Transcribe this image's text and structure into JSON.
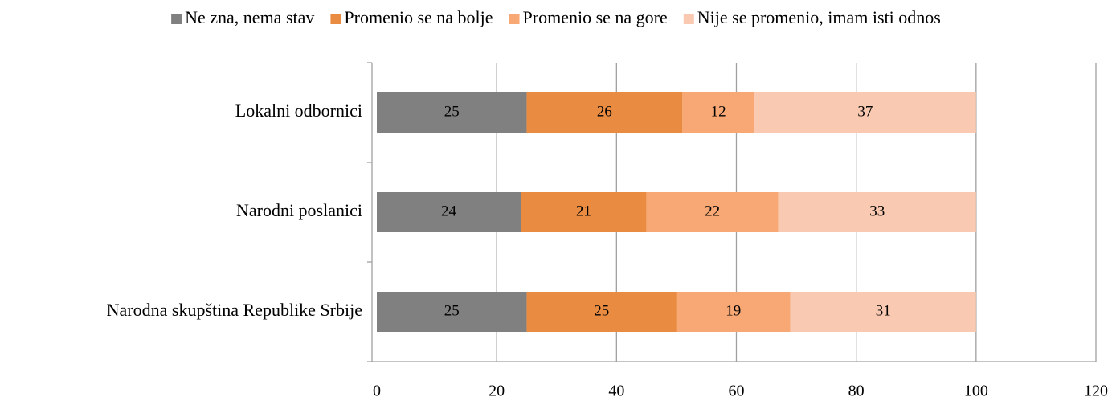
{
  "chart_data": {
    "type": "stacked_barh",
    "categories": [
      "Lokalni odbornici",
      "Narodni poslanici",
      "Narodna skupština Republike Srbije"
    ],
    "series": [
      {
        "name": "Ne zna, nema stav",
        "color": "#808080",
        "values": [
          25,
          24,
          25
        ]
      },
      {
        "name": "Promenio se na bolje",
        "color": "#e98c42",
        "values": [
          26,
          21,
          25
        ]
      },
      {
        "name": "Promenio se na gore",
        "color": "#f7a874",
        "values": [
          12,
          22,
          19
        ]
      },
      {
        "name": "Nije se promenio, imam isti odnos",
        "color": "#f9cab1",
        "values": [
          37,
          33,
          31
        ]
      }
    ],
    "xlim": [
      0,
      120
    ],
    "xticks": [
      0,
      20,
      40,
      60,
      80,
      100,
      120
    ],
    "grid": true,
    "legend": "top"
  }
}
